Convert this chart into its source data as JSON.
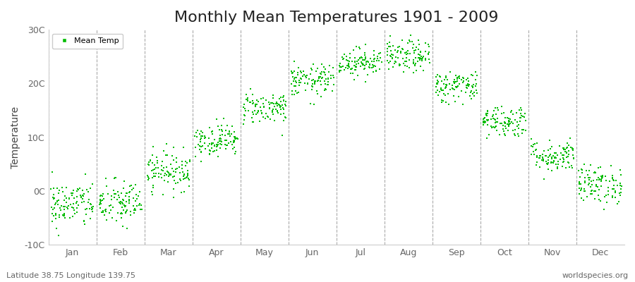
{
  "title": "Monthly Mean Temperatures 1901 - 2009",
  "ylabel": "Temperature",
  "xlabel_footer_left": "Latitude 38.75 Longitude 139.75",
  "xlabel_footer_right": "worldspecies.org",
  "legend_label": "Mean Temp",
  "ylim": [
    -10,
    30
  ],
  "yticks": [
    -10,
    0,
    10,
    20,
    30
  ],
  "ytick_labels": [
    "-10C",
    "0C",
    "10C",
    "20C",
    "30C"
  ],
  "months": [
    "Jan",
    "Feb",
    "Mar",
    "Apr",
    "May",
    "Jun",
    "Jul",
    "Aug",
    "Sep",
    "Oct",
    "Nov",
    "Dec"
  ],
  "monthly_mean_temps": [
    -2.5,
    -2.3,
    3.8,
    9.5,
    15.5,
    20.5,
    24.0,
    25.0,
    19.5,
    13.0,
    6.5,
    1.2
  ],
  "monthly_std": [
    2.2,
    2.2,
    1.8,
    1.5,
    1.5,
    1.5,
    1.3,
    1.5,
    1.5,
    1.5,
    1.5,
    1.8
  ],
  "n_years": 109,
  "marker_color": "#00bb00",
  "marker_size": 3,
  "bg_color": "#ffffff",
  "fig_bg_color": "#ffffff",
  "title_fontsize": 16,
  "axis_label_fontsize": 10,
  "tick_fontsize": 9,
  "dashed_line_color": "#aaaaaa",
  "footer_fontsize": 8
}
